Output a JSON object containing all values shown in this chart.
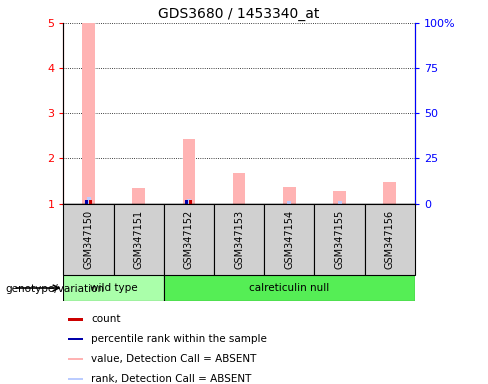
{
  "title": "GDS3680 / 1453340_at",
  "samples": [
    "GSM347150",
    "GSM347151",
    "GSM347152",
    "GSM347153",
    "GSM347154",
    "GSM347155",
    "GSM347156"
  ],
  "ylim_left": [
    1,
    5
  ],
  "ylim_right": [
    0,
    100
  ],
  "yticks_left": [
    1,
    2,
    3,
    4,
    5
  ],
  "yticks_right": [
    0,
    25,
    50,
    75,
    100
  ],
  "yticklabels_right": [
    "0",
    "25",
    "50",
    "75",
    "100%"
  ],
  "bar_values_pink": [
    5.0,
    1.35,
    2.43,
    1.67,
    1.37,
    1.27,
    1.48
  ],
  "bar_values_lightblue": [
    1.15,
    0.0,
    1.1,
    0.0,
    1.05,
    1.05,
    0.0
  ],
  "has_red_marker": [
    true,
    false,
    true,
    false,
    false,
    false,
    false
  ],
  "has_blue_marker": [
    true,
    false,
    true,
    false,
    false,
    false,
    false
  ],
  "wt_color": "#AAFFAA",
  "cr_color": "#55EE55",
  "box_color": "#D0D0D0",
  "pink_color": "#FFB3B3",
  "lightblue_color": "#BBCCFF",
  "red_color": "#CC0000",
  "blue_color": "#0000AA",
  "genotype_label": "genotype/variation",
  "legend_items": [
    {
      "color": "#CC0000",
      "label": "count"
    },
    {
      "color": "#0000AA",
      "label": "percentile rank within the sample"
    },
    {
      "color": "#FFB3B3",
      "label": "value, Detection Call = ABSENT"
    },
    {
      "color": "#BBCCFF",
      "label": "rank, Detection Call = ABSENT"
    }
  ]
}
